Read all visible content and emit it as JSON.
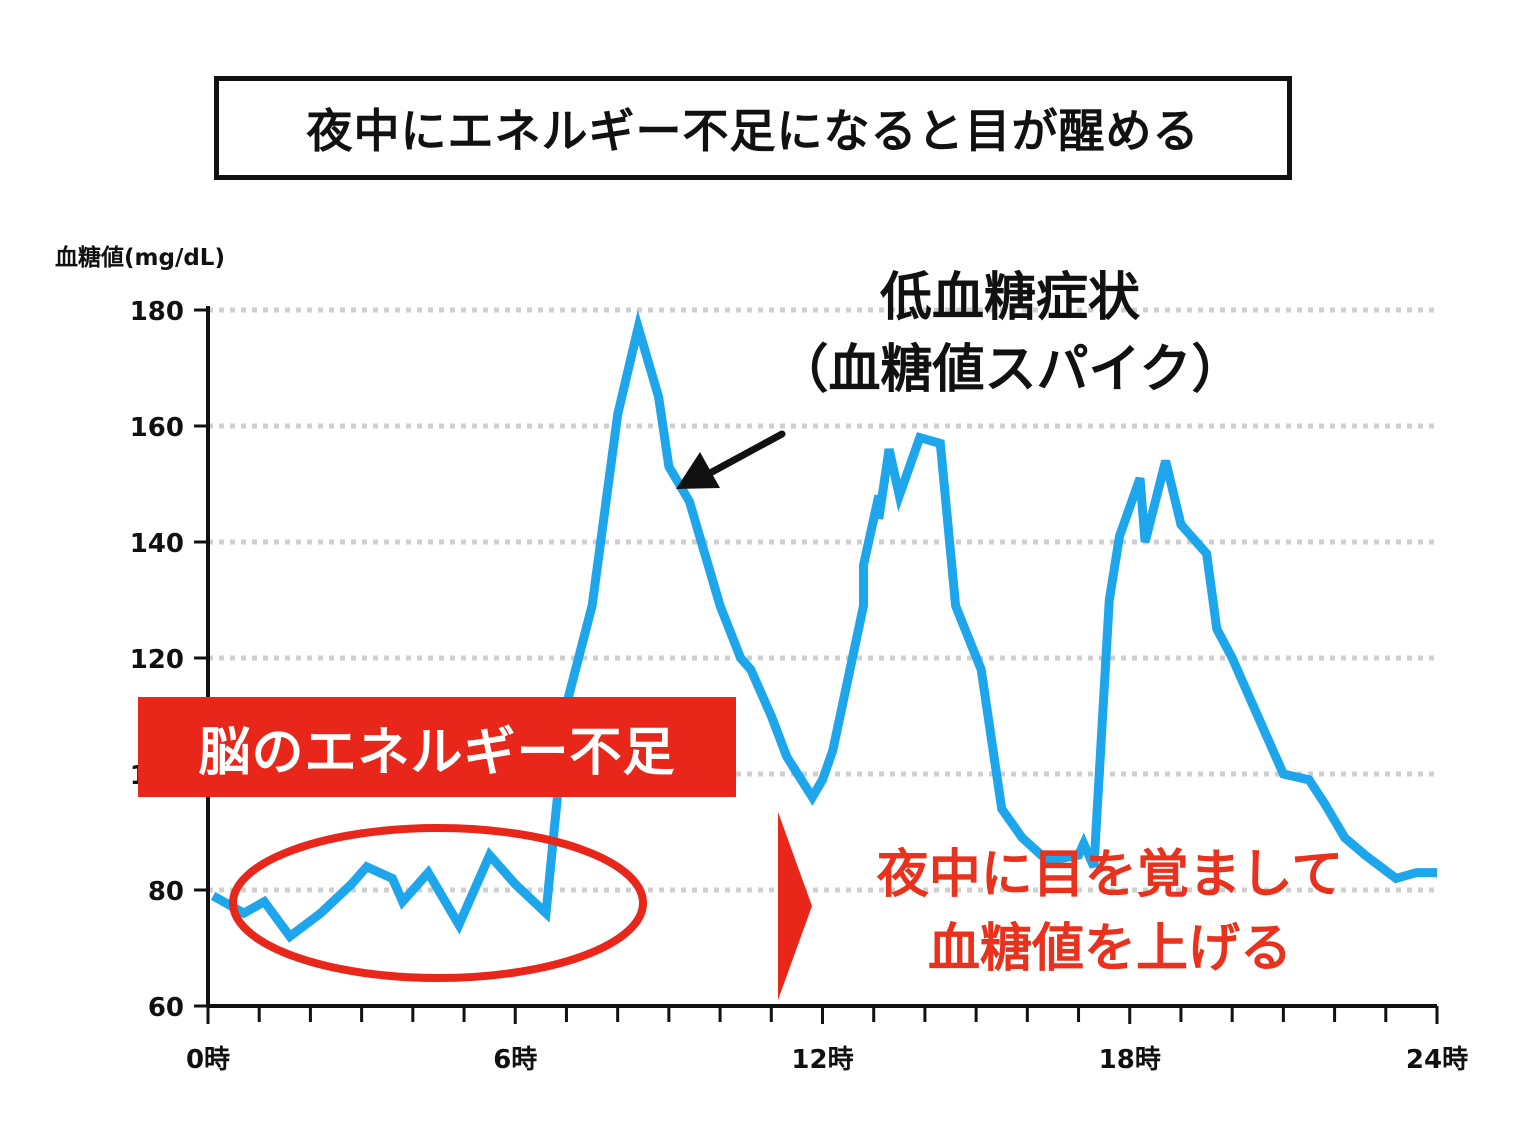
{
  "title": "夜中にエネルギー不足になると目が醒める",
  "annotations": {
    "spike_line1": "低血糖症状",
    "spike_line2": "（血糖値スパイク）",
    "energy_box": "脳のエネルギー不足",
    "wake_line1": "夜中に目を覚まして",
    "wake_line2": "血糖値を上げる"
  },
  "colors": {
    "line": "#1ea6ec",
    "accent_red": "#e8271a",
    "grid": "#cfcfcf",
    "axis": "#111111"
  },
  "chart_data": {
    "type": "line",
    "title": "",
    "xlabel": "",
    "ylabel": "血糖値(mg/dL)",
    "xlim": [
      0,
      24
    ],
    "ylim": [
      60,
      180
    ],
    "yticks": [
      60,
      80,
      100,
      120,
      140,
      160,
      180
    ],
    "xtick_values": [
      0,
      6,
      12,
      18,
      24
    ],
    "xtick_labels": [
      "0時",
      "6時",
      "12時",
      "18時",
      "24時"
    ],
    "minor_xticks": [
      1,
      2,
      3,
      4,
      5,
      7,
      8,
      9,
      10,
      11,
      13,
      14,
      15,
      16,
      17,
      19,
      20,
      21,
      22,
      23
    ],
    "grid": "horizontal dotted",
    "series": [
      {
        "name": "",
        "x": [
          0.1,
          0.7,
          1.1,
          1.6,
          2.2,
          2.8,
          3.1,
          3.6,
          3.8,
          4.3,
          4.9,
          5.5,
          6.0,
          6.6,
          7.0,
          7.5,
          8.0,
          8.4,
          8.8,
          9.0,
          9.4,
          10.0,
          10.4,
          10.6,
          11.0,
          11.3,
          11.8,
          12.0,
          12.2,
          12.8,
          12.8,
          13.1,
          13.1,
          13.3,
          13.5,
          13.9,
          14.3,
          14.6,
          15.1,
          15.5,
          15.9,
          16.4,
          17.0,
          17.1,
          17.3,
          17.6,
          17.8,
          18.2,
          18.3,
          18.7,
          19.0,
          19.5,
          19.7,
          20.0,
          20.4,
          21.0,
          21.5,
          21.8,
          22.2,
          22.6,
          23.2,
          23.6,
          24.0
        ],
        "values": [
          79,
          76,
          78,
          72,
          76,
          81,
          84,
          82,
          78,
          83,
          74,
          86,
          81,
          76,
          112,
          129,
          162,
          177,
          165,
          153,
          147,
          129,
          120,
          118,
          110,
          103,
          96,
          99,
          104,
          129,
          136,
          148,
          144,
          156,
          148,
          158,
          157,
          129,
          118,
          94,
          89,
          85,
          86,
          88,
          84,
          130,
          141,
          151,
          140,
          154,
          143,
          138,
          125,
          120,
          112,
          100,
          99,
          95,
          89,
          86,
          82,
          83,
          83
        ]
      }
    ]
  }
}
